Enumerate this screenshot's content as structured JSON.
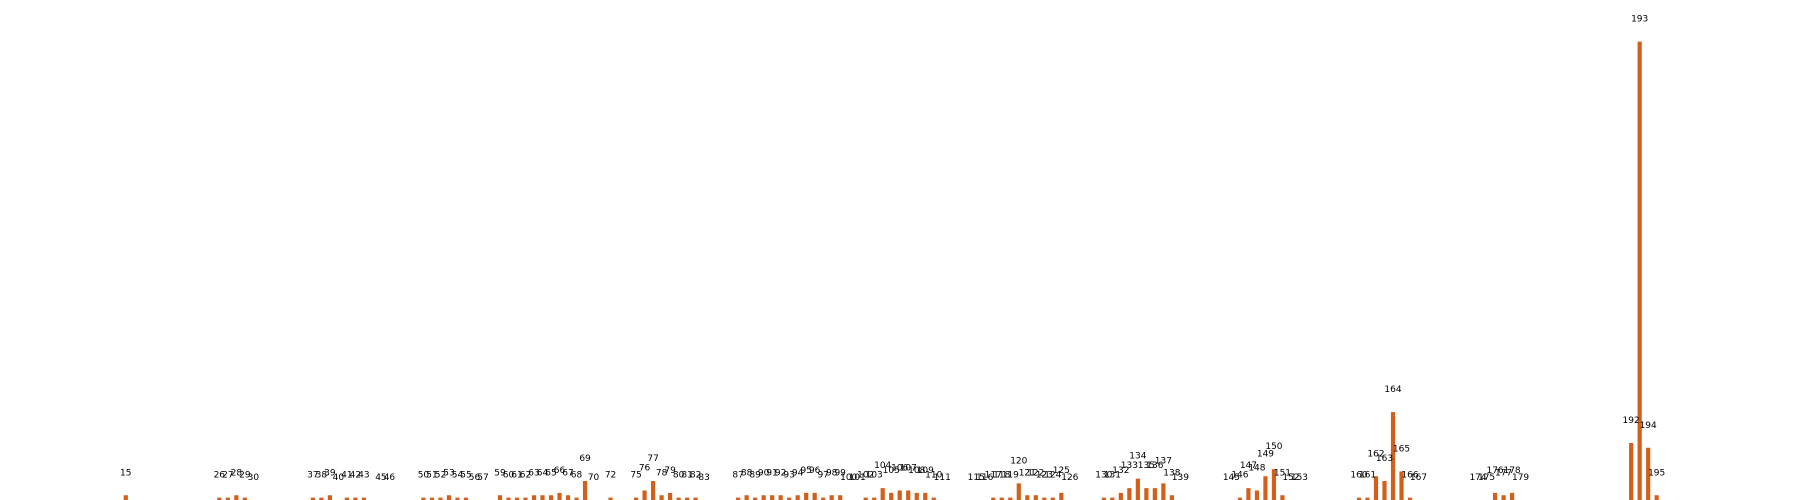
{
  "chart_data": {
    "type": "bar",
    "bar_color": "#d2601a",
    "show_axes": false,
    "grid": false,
    "title": "",
    "xlabel": "",
    "ylabel": "",
    "ylim": [
      0,
      200
    ],
    "xlim": [
      0,
      200
    ],
    "bars": [
      {
        "x": 15,
        "value": 2
      },
      {
        "x": 26,
        "value": 1
      },
      {
        "x": 27,
        "value": 1
      },
      {
        "x": 28,
        "value": 2
      },
      {
        "x": 29,
        "value": 1
      },
      {
        "x": 30,
        "value": 0
      },
      {
        "x": 37,
        "value": 1
      },
      {
        "x": 38,
        "value": 1
      },
      {
        "x": 39,
        "value": 2
      },
      {
        "x": 40,
        "value": 0
      },
      {
        "x": 41,
        "value": 1
      },
      {
        "x": 42,
        "value": 1
      },
      {
        "x": 43,
        "value": 1
      },
      {
        "x": 45,
        "value": 0
      },
      {
        "x": 46,
        "value": 0
      },
      {
        "x": 50,
        "value": 1
      },
      {
        "x": 51,
        "value": 1
      },
      {
        "x": 52,
        "value": 1
      },
      {
        "x": 53,
        "value": 2
      },
      {
        "x": 54,
        "value": 1
      },
      {
        "x": 55,
        "value": 1
      },
      {
        "x": 56,
        "value": 0
      },
      {
        "x": 57,
        "value": 0
      },
      {
        "x": 59,
        "value": 2
      },
      {
        "x": 60,
        "value": 1
      },
      {
        "x": 61,
        "value": 1
      },
      {
        "x": 62,
        "value": 1
      },
      {
        "x": 63,
        "value": 2
      },
      {
        "x": 64,
        "value": 2
      },
      {
        "x": 65,
        "value": 2
      },
      {
        "x": 66,
        "value": 3
      },
      {
        "x": 67,
        "value": 2
      },
      {
        "x": 68,
        "value": 1
      },
      {
        "x": 69,
        "value": 8
      },
      {
        "x": 70,
        "value": 0
      },
      {
        "x": 72,
        "value": 1
      },
      {
        "x": 75,
        "value": 1
      },
      {
        "x": 76,
        "value": 4
      },
      {
        "x": 77,
        "value": 8
      },
      {
        "x": 78,
        "value": 2
      },
      {
        "x": 79,
        "value": 3
      },
      {
        "x": 80,
        "value": 1
      },
      {
        "x": 81,
        "value": 1
      },
      {
        "x": 82,
        "value": 1
      },
      {
        "x": 83,
        "value": 0
      },
      {
        "x": 87,
        "value": 1
      },
      {
        "x": 88,
        "value": 2
      },
      {
        "x": 89,
        "value": 1
      },
      {
        "x": 90,
        "value": 2
      },
      {
        "x": 91,
        "value": 2
      },
      {
        "x": 92,
        "value": 2
      },
      {
        "x": 93,
        "value": 1
      },
      {
        "x": 94,
        "value": 2
      },
      {
        "x": 95,
        "value": 3
      },
      {
        "x": 96,
        "value": 3
      },
      {
        "x": 97,
        "value": 1
      },
      {
        "x": 98,
        "value": 2
      },
      {
        "x": 99,
        "value": 2
      },
      {
        "x": 100,
        "value": 0
      },
      {
        "x": 101,
        "value": 0
      },
      {
        "x": 102,
        "value": 1
      },
      {
        "x": 103,
        "value": 1
      },
      {
        "x": 104,
        "value": 5
      },
      {
        "x": 105,
        "value": 3
      },
      {
        "x": 106,
        "value": 4
      },
      {
        "x": 107,
        "value": 4
      },
      {
        "x": 108,
        "value": 3
      },
      {
        "x": 109,
        "value": 3
      },
      {
        "x": 110,
        "value": 1
      },
      {
        "x": 111,
        "value": 0
      },
      {
        "x": 115,
        "value": 0
      },
      {
        "x": 116,
        "value": 0
      },
      {
        "x": 117,
        "value": 1
      },
      {
        "x": 118,
        "value": 1
      },
      {
        "x": 119,
        "value": 1
      },
      {
        "x": 120,
        "value": 7
      },
      {
        "x": 121,
        "value": 2
      },
      {
        "x": 122,
        "value": 2
      },
      {
        "x": 123,
        "value": 1
      },
      {
        "x": 124,
        "value": 1
      },
      {
        "x": 125,
        "value": 3
      },
      {
        "x": 126,
        "value": 0
      },
      {
        "x": 130,
        "value": 1
      },
      {
        "x": 131,
        "value": 1
      },
      {
        "x": 132,
        "value": 3
      },
      {
        "x": 133,
        "value": 5
      },
      {
        "x": 134,
        "value": 9
      },
      {
        "x": 135,
        "value": 5
      },
      {
        "x": 136,
        "value": 5
      },
      {
        "x": 137,
        "value": 7
      },
      {
        "x": 138,
        "value": 2
      },
      {
        "x": 139,
        "value": 0
      },
      {
        "x": 145,
        "value": 0
      },
      {
        "x": 146,
        "value": 1
      },
      {
        "x": 147,
        "value": 5
      },
      {
        "x": 148,
        "value": 4
      },
      {
        "x": 149,
        "value": 10
      },
      {
        "x": 150,
        "value": 13
      },
      {
        "x": 151,
        "value": 2
      },
      {
        "x": 152,
        "value": 0
      },
      {
        "x": 153,
        "value": 0
      },
      {
        "x": 160,
        "value": 1
      },
      {
        "x": 161,
        "value": 1
      },
      {
        "x": 162,
        "value": 10
      },
      {
        "x": 163,
        "value": 8
      },
      {
        "x": 164,
        "value": 37
      },
      {
        "x": 165,
        "value": 12
      },
      {
        "x": 166,
        "value": 1
      },
      {
        "x": 167,
        "value": 0
      },
      {
        "x": 174,
        "value": 0
      },
      {
        "x": 175,
        "value": 0
      },
      {
        "x": 176,
        "value": 3
      },
      {
        "x": 177,
        "value": 2
      },
      {
        "x": 178,
        "value": 3
      },
      {
        "x": 179,
        "value": 0
      },
      {
        "x": 192,
        "value": 24
      },
      {
        "x": 193,
        "value": 193
      },
      {
        "x": 194,
        "value": 22
      },
      {
        "x": 195,
        "value": 2
      }
    ]
  }
}
